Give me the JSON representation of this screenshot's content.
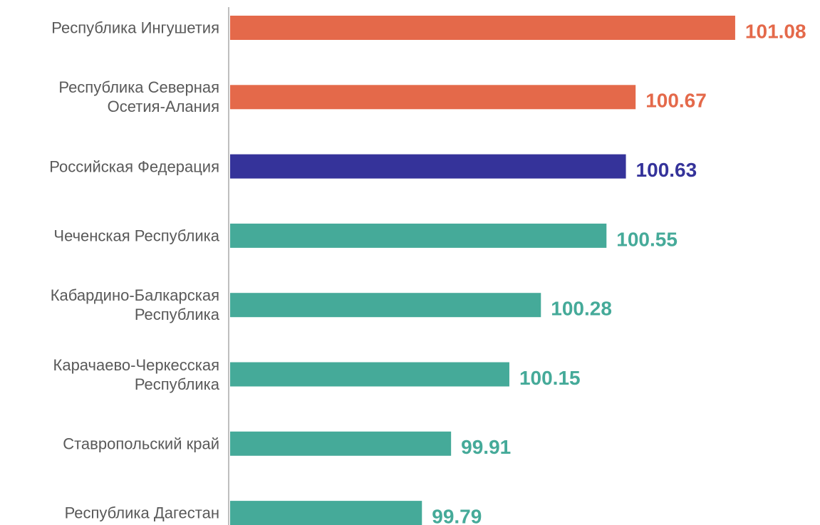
{
  "chart_data": {
    "type": "barh",
    "categories": [
      "Республика Ингушетия",
      "Республика Северная\nОсетия-Алания",
      "Российская Федерация",
      "Чеченская Республика",
      "Кабардино-Балкарская\nРеспублика",
      "Карачаево-Черкесская\nРеспублика",
      "Ставропольский край",
      "Республика Дагестан"
    ],
    "values": [
      101.08,
      100.67,
      100.63,
      100.55,
      100.28,
      100.15,
      99.91,
      99.79
    ],
    "colors": [
      "#e4694a",
      "#e4694a",
      "#35339a",
      "#45aa99",
      "#45aa99",
      "#45aa99",
      "#45aa99",
      "#45aa99"
    ],
    "xlim": [
      99,
      101.4
    ]
  }
}
